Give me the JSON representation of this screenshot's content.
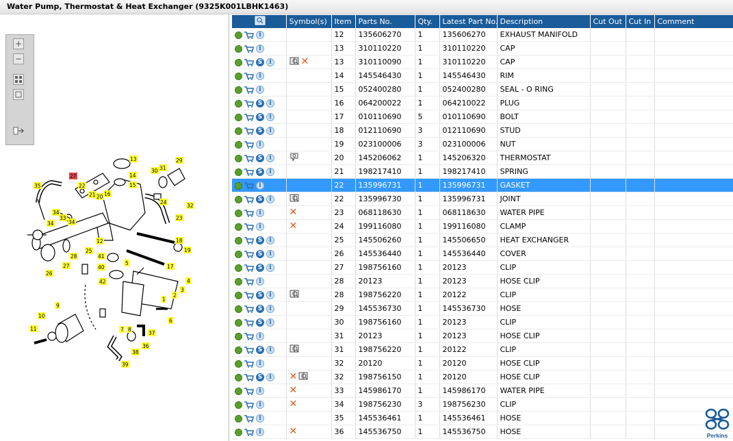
{
  "window": {
    "title": "Water Pump, Thermostat & Heat Exchanger (9325K001LBHK1463)"
  },
  "zoom_toolbar": [
    {
      "name": "zoom-in-icon"
    },
    {
      "name": "zoom-out-icon"
    },
    {
      "name": "fit-all-icon"
    },
    {
      "name": "fit-window-icon"
    },
    {
      "name": "export-icon"
    }
  ],
  "diagram": {
    "callouts": [
      "1",
      "2",
      "3",
      "4",
      "5",
      "6",
      "7",
      "8",
      "9",
      "10",
      "11",
      "12",
      "13",
      "14",
      "15",
      "16",
      "17",
      "18",
      "19",
      "20",
      "21",
      "22",
      "23",
      "24",
      "25",
      "26",
      "27",
      "28",
      "29",
      "30",
      "31",
      "32",
      "33",
      "34",
      "34",
      "35",
      "36",
      "37",
      "38",
      "39",
      "40",
      "41",
      "42",
      "27"
    ],
    "highlighted_callout": "27"
  },
  "table": {
    "columns": [
      "",
      "Symbol(s)",
      "Item",
      "Parts No.",
      "Qty.",
      "Latest Part No.",
      "Description",
      "Cut Out",
      "Cut In",
      "Comment"
    ],
    "rows": [
      {
        "s": false,
        "sym": [],
        "item": "12",
        "part": "135606270",
        "qty": "1",
        "latest": "135606270",
        "desc": "EXHAUST MANIFOLD"
      },
      {
        "s": false,
        "sym": [],
        "item": "13",
        "part": "310110220",
        "qty": "1",
        "latest": "310110220",
        "desc": "CAP"
      },
      {
        "s": true,
        "sym": [
          "book-icon",
          "x-mark-icon"
        ],
        "item": "13",
        "part": "310110090",
        "qty": "1",
        "latest": "310110220",
        "desc": "CAP"
      },
      {
        "s": false,
        "sym": [],
        "item": "14",
        "part": "145546430",
        "qty": "1",
        "latest": "145546430",
        "desc": "RIM"
      },
      {
        "s": false,
        "sym": [],
        "item": "15",
        "part": "052400280",
        "qty": "1",
        "latest": "052400280",
        "desc": "SEAL - O RING"
      },
      {
        "s": true,
        "sym": [],
        "item": "16",
        "part": "064200022",
        "qty": "1",
        "latest": "064210022",
        "desc": "PLUG"
      },
      {
        "s": true,
        "sym": [],
        "item": "17",
        "part": "010110690",
        "qty": "5",
        "latest": "010110690",
        "desc": "BOLT"
      },
      {
        "s": true,
        "sym": [],
        "item": "18",
        "part": "012110690",
        "qty": "3",
        "latest": "012110690",
        "desc": "STUD"
      },
      {
        "s": false,
        "sym": [],
        "item": "19",
        "part": "023100006",
        "qty": "3",
        "latest": "023100006",
        "desc": "NUT"
      },
      {
        "s": true,
        "sym": [
          "balloon-icon"
        ],
        "item": "20",
        "part": "145206062",
        "qty": "1",
        "latest": "145206320",
        "desc": "THERMOSTAT"
      },
      {
        "s": true,
        "sym": [],
        "item": "21",
        "part": "198217410",
        "qty": "1",
        "latest": "198217410",
        "desc": "SPRING"
      },
      {
        "s": false,
        "sel": true,
        "sym": [],
        "item": "22",
        "part": "135996731",
        "qty": "1",
        "latest": "135996731",
        "desc": "GASKET"
      },
      {
        "s": true,
        "sym": [
          "book-icon"
        ],
        "item": "22",
        "part": "135996730",
        "qty": "1",
        "latest": "135996731",
        "desc": "JOINT"
      },
      {
        "s": false,
        "sym": [
          "x-mark-icon"
        ],
        "item": "23",
        "part": "068118630",
        "qty": "1",
        "latest": "068118630",
        "desc": "WATER PIPE"
      },
      {
        "s": false,
        "sym": [
          "x-mark-icon"
        ],
        "item": "24",
        "part": "199116080",
        "qty": "1",
        "latest": "199116080",
        "desc": "CLAMP"
      },
      {
        "s": true,
        "sym": [],
        "item": "25",
        "part": "145506260",
        "qty": "1",
        "latest": "145506650",
        "desc": "HEAT EXCHANGER"
      },
      {
        "s": true,
        "sym": [],
        "item": "26",
        "part": "145536440",
        "qty": "1",
        "latest": "145536440",
        "desc": "COVER"
      },
      {
        "s": true,
        "sym": [],
        "item": "27",
        "part": "198756160",
        "qty": "1",
        "latest": "20123",
        "desc": "CLIP"
      },
      {
        "s": false,
        "sym": [],
        "item": "28",
        "part": "20123",
        "qty": "1",
        "latest": "20123",
        "desc": "HOSE CLIP"
      },
      {
        "s": true,
        "sym": [
          "book-icon"
        ],
        "item": "28",
        "part": "198756220",
        "qty": "1",
        "latest": "20122",
        "desc": "CLIP"
      },
      {
        "s": true,
        "sym": [],
        "item": "29",
        "part": "145536730",
        "qty": "1",
        "latest": "145536730",
        "desc": "HOSE"
      },
      {
        "s": true,
        "sym": [],
        "item": "30",
        "part": "198756160",
        "qty": "1",
        "latest": "20123",
        "desc": "CLIP"
      },
      {
        "s": false,
        "sym": [],
        "item": "31",
        "part": "20123",
        "qty": "1",
        "latest": "20123",
        "desc": "HOSE CLIP"
      },
      {
        "s": true,
        "sym": [
          "book-icon"
        ],
        "item": "31",
        "part": "198756220",
        "qty": "1",
        "latest": "20122",
        "desc": "CLIP"
      },
      {
        "s": false,
        "sym": [],
        "item": "32",
        "part": "20120",
        "qty": "1",
        "latest": "20120",
        "desc": "HOSE CLIP"
      },
      {
        "s": true,
        "sym": [
          "x-mark-icon",
          "book-icon"
        ],
        "item": "32",
        "part": "198756150",
        "qty": "1",
        "latest": "20120",
        "desc": "HOSE CLIP"
      },
      {
        "s": false,
        "sym": [
          "x-mark-icon"
        ],
        "item": "33",
        "part": "145986170",
        "qty": "1",
        "latest": "145986170",
        "desc": "WATER PIPE"
      },
      {
        "s": false,
        "sym": [
          "x-mark-icon"
        ],
        "item": "34",
        "part": "198756230",
        "qty": "3",
        "latest": "198756230",
        "desc": "CLIP"
      },
      {
        "s": false,
        "sym": [],
        "item": "35",
        "part": "145536461",
        "qty": "1",
        "latest": "145536461",
        "desc": "HOSE"
      },
      {
        "s": false,
        "sym": [
          "x-mark-icon"
        ],
        "item": "36",
        "part": "145536750",
        "qty": "1",
        "latest": "145536750",
        "desc": "HOSE"
      }
    ]
  },
  "brand": {
    "name": "Perkins"
  },
  "colors": {
    "header": "#1a5b99",
    "selected_row": "#3399ff",
    "callout": "#ffff33",
    "callout_highlight": "#e0474c",
    "xmark": "#e8591a"
  }
}
